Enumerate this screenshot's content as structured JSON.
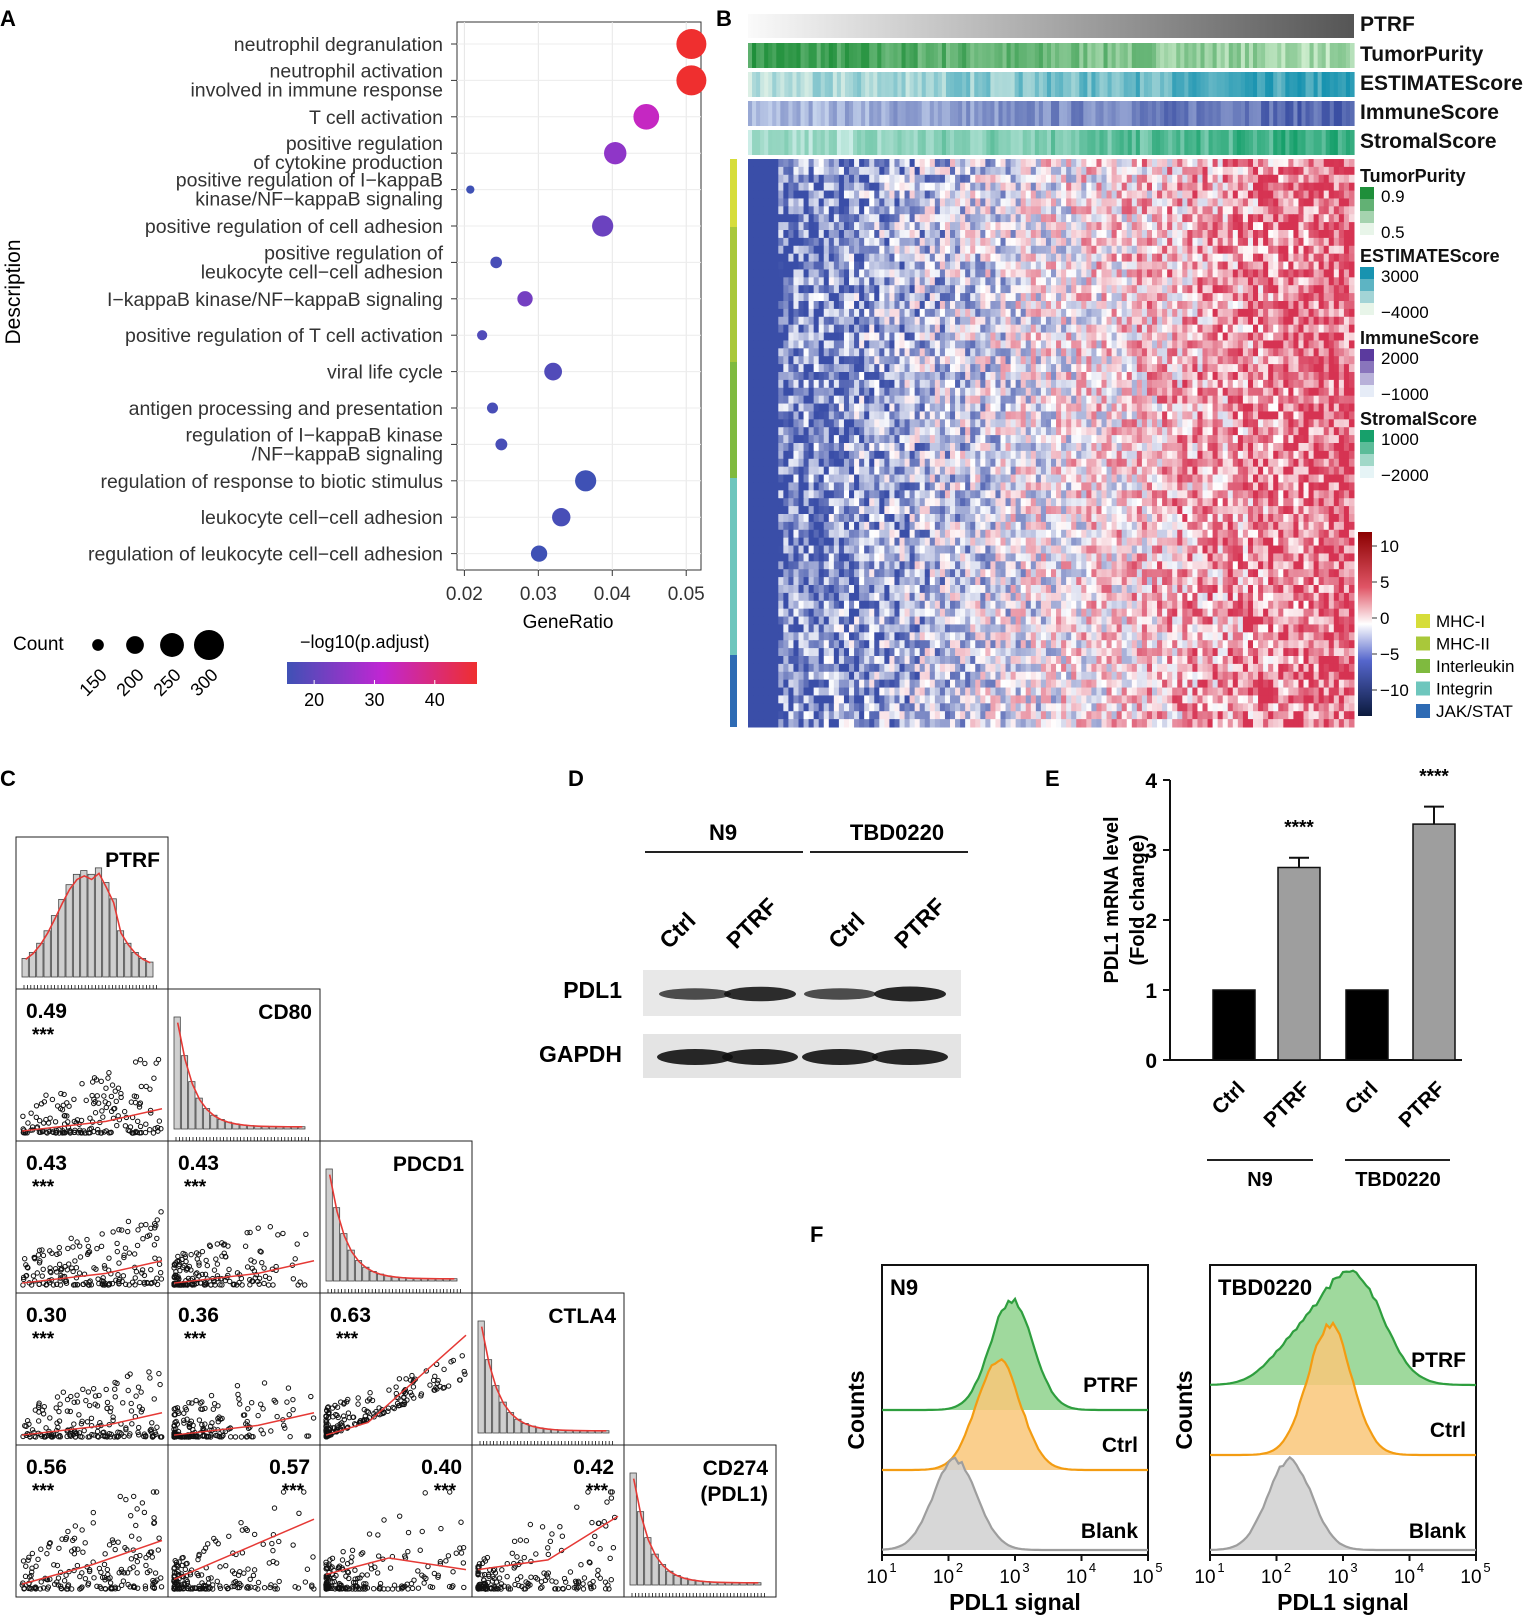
{
  "panel_letters": [
    "A",
    "B",
    "C",
    "D",
    "E",
    "F"
  ],
  "colors": {
    "low": "#3f51b5",
    "mid": "#c026d3",
    "high": "#ef2f2f",
    "bar_dark": "#000000",
    "bar_grey": "#9e9e9e",
    "green": "#2e9e3e",
    "orange": "#f39c12",
    "grey": "#9e9e9e"
  },
  "chart_data": [
    {
      "panel": "A",
      "type": "scatter",
      "xlabel": "GeneRatio",
      "ylabel": "Description",
      "xlim": [
        0.019,
        0.052
      ],
      "xticks": [
        "0.02",
        "0.03",
        "0.04",
        "0.05"
      ],
      "terms": [
        {
          "label1": "neutrophil degranulation",
          "label2": "",
          "ratio": 0.0507,
          "count": 300,
          "padj": 47
        },
        {
          "label1": "neutrophil activation",
          "label2": "involved in immune response",
          "ratio": 0.0507,
          "count": 300,
          "padj": 47
        },
        {
          "label1": "T cell activation",
          "label2": "",
          "ratio": 0.0446,
          "count": 265,
          "padj": 34
        },
        {
          "label1": "positive regulation",
          "label2": "of cytokine production",
          "ratio": 0.0404,
          "count": 238,
          "padj": 27
        },
        {
          "label1": "positive regulation of I−kappaB",
          "label2": "kinase/NF−kappaB signaling",
          "ratio": 0.0208,
          "count": 122,
          "padj": 18
        },
        {
          "label1": "positive regulation of cell adhesion",
          "label2": "",
          "ratio": 0.0387,
          "count": 228,
          "padj": 23
        },
        {
          "label1": "positive regulation of",
          "label2": "leukocyte cell−cell adhesion",
          "ratio": 0.0243,
          "count": 150,
          "padj": 19
        },
        {
          "label1": "I−kappaB kinase/NF−kappaB signaling",
          "label2": "",
          "ratio": 0.0282,
          "count": 180,
          "padj": 24
        },
        {
          "label1": "positive regulation of T cell activation",
          "label2": "",
          "ratio": 0.0224,
          "count": 138,
          "padj": 20
        },
        {
          "label1": "viral life cycle",
          "label2": "",
          "ratio": 0.032,
          "count": 200,
          "padj": 20
        },
        {
          "label1": "antigen processing and presentation",
          "label2": "",
          "ratio": 0.0238,
          "count": 145,
          "padj": 19
        },
        {
          "label1": "regulation of I−kappaB kinase",
          "label2": "/NF−kappaB signaling",
          "ratio": 0.025,
          "count": 152,
          "padj": 19
        },
        {
          "label1": "regulation of response to biotic stimulus",
          "label2": "",
          "ratio": 0.0364,
          "count": 228,
          "padj": 18
        },
        {
          "label1": "leukocyte cell−cell adhesion",
          "label2": "",
          "ratio": 0.0331,
          "count": 205,
          "padj": 19
        },
        {
          "label1": "regulation of leukocyte cell−cell adhesion",
          "label2": "",
          "ratio": 0.0301,
          "count": 188,
          "padj": 18
        }
      ],
      "count_legend": {
        "title": "Count",
        "values": [
          "150",
          "200",
          "250",
          "300"
        ]
      },
      "color_legend": {
        "title": "−log10(p.adjust)",
        "ticks": [
          "20",
          "30",
          "40"
        ]
      }
    },
    {
      "panel": "B",
      "type": "heatmap",
      "annotation_tracks": [
        "PTRF",
        "TumorPurity",
        "ESTIMATEScore",
        "ImmuneScore",
        "StromalScore"
      ],
      "legends": [
        {
          "title": "TumorPurity",
          "hi": "0.9",
          "lo": "0.5"
        },
        {
          "title": "ESTIMATEScore",
          "hi": "3000",
          "lo": "−4000"
        },
        {
          "title": "ImmuneScore",
          "hi": "2000",
          "lo": "−1000"
        },
        {
          "title": "StromalScore",
          "hi": "1000",
          "lo": "−2000"
        }
      ],
      "scale_ticks": [
        "10",
        "5",
        "0",
        "−5",
        "−10"
      ],
      "groups": [
        "MHC-I",
        "MHC-II",
        "Interleukin",
        "Integrin",
        "JAK/STAT"
      ]
    },
    {
      "panel": "C",
      "type": "scatter",
      "genes": [
        "PTRF",
        "CD80",
        "PDCD1",
        "CTLA4",
        "CD274 (PDL1)"
      ],
      "gene_line1": [
        "PTRF",
        "CD80",
        "PDCD1",
        "CTLA4",
        "CD274"
      ],
      "gene_line2": [
        "",
        "",
        "",
        "",
        "(PDL1)"
      ],
      "correlations": [
        {
          "r": "0.49",
          "sig": "***"
        },
        {
          "r": "0.43",
          "sig": "***"
        },
        {
          "r": "0.43",
          "sig": "***"
        },
        {
          "r": "0.30",
          "sig": "***"
        },
        {
          "r": "0.36",
          "sig": "***"
        },
        {
          "r": "0.63",
          "sig": "***"
        },
        {
          "r": "0.56",
          "sig": "***"
        },
        {
          "r": "0.57",
          "sig": "***"
        },
        {
          "r": "0.40",
          "sig": "***"
        },
        {
          "r": "0.42",
          "sig": "***"
        }
      ]
    },
    {
      "panel": "D",
      "type": "table",
      "groups": [
        "N9",
        "TBD0220"
      ],
      "lanes": [
        "Ctrl",
        "PTRF",
        "Ctrl",
        "PTRF"
      ],
      "rows": [
        "PDL1",
        "GAPDH"
      ],
      "pdl1_intensity": [
        0.55,
        0.85,
        0.55,
        0.9
      ],
      "gapdh_intensity": [
        0.9,
        0.9,
        0.9,
        0.9
      ]
    },
    {
      "panel": "E",
      "type": "bar",
      "ylabel1": "PDL1 mRNA level",
      "ylabel2": "(Fold change)",
      "ylim": [
        0,
        4
      ],
      "yticks": [
        "0",
        "1",
        "2",
        "3",
        "4"
      ],
      "categories": [
        "Ctrl",
        "PTRF",
        "Ctrl",
        "PTRF"
      ],
      "groups": [
        "N9",
        "TBD0220"
      ],
      "values": [
        1,
        2.75,
        1,
        3.37
      ],
      "errors": [
        0,
        0.14,
        0,
        0.25
      ],
      "significance": [
        "",
        "****",
        "",
        "****"
      ]
    },
    {
      "panel": "F",
      "type": "area",
      "plots": [
        {
          "title": "N9",
          "series": [
            "PTRF",
            "Ctrl",
            "Blank"
          ],
          "peaks_log10": [
            2.95,
            2.75,
            2.1
          ]
        },
        {
          "title": "TBD0220",
          "series": [
            "PTRF",
            "Ctrl",
            "Blank"
          ],
          "peaks_log10": [
            3.2,
            2.8,
            2.2
          ]
        }
      ],
      "xlabel": "PDL1 signal",
      "ylabel": "Counts",
      "xticks": [
        "10",
        "10",
        "10",
        "10",
        "10"
      ],
      "xtick_exp": [
        "1",
        "2",
        "3",
        "4",
        "5"
      ]
    }
  ]
}
